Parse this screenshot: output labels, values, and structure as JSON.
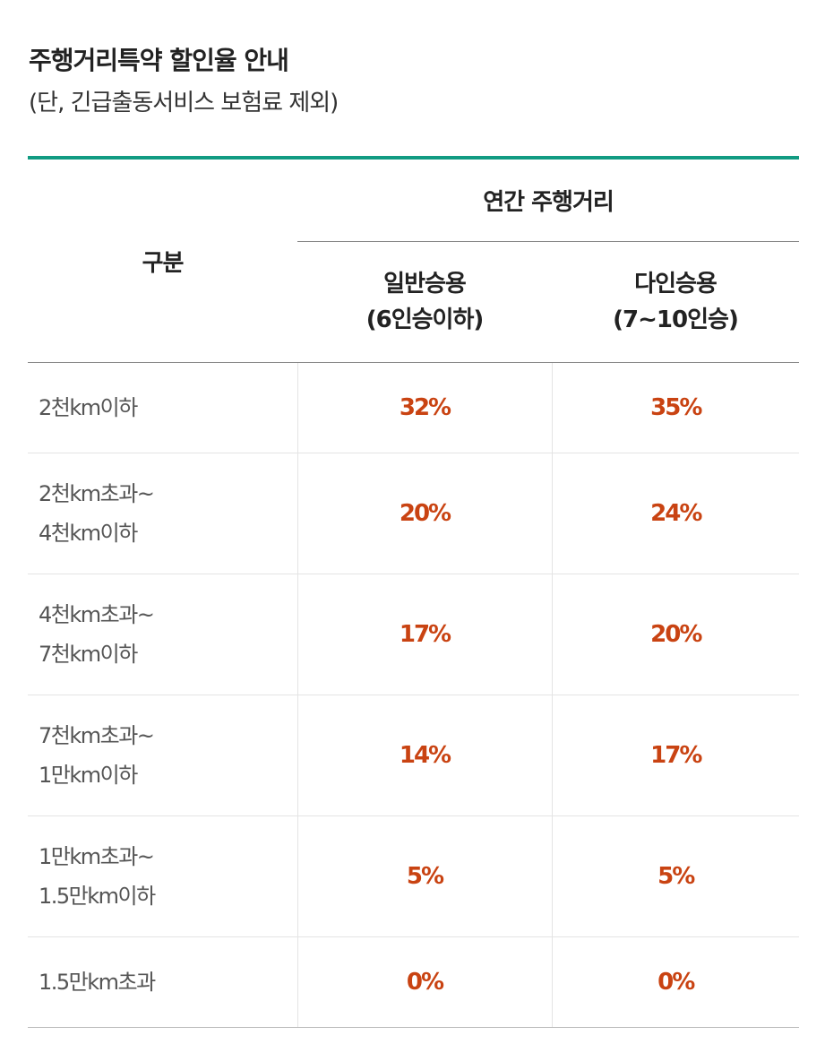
{
  "title": "주행거리특약 할인율 안내",
  "subtitle": "(단, 긴급출동서비스 보험료 제외)",
  "accent_color": "#119b82",
  "rate_color": "#c94312",
  "table": {
    "corner_label": "구분",
    "group_label": "연간 주행거리",
    "columns": [
      {
        "line1": "일반승용",
        "line2": "(6인승이하)"
      },
      {
        "line1": "다인승용",
        "line2": "(7~10인승)"
      }
    ],
    "rows": [
      {
        "label": [
          "2천km이하"
        ],
        "rates": [
          "32%",
          "35%"
        ]
      },
      {
        "label": [
          "2천km초과~",
          "4천km이하"
        ],
        "rates": [
          "20%",
          "24%"
        ]
      },
      {
        "label": [
          "4천km초과~",
          "7천km이하"
        ],
        "rates": [
          "17%",
          "20%"
        ]
      },
      {
        "label": [
          "7천km초과~",
          "1만km이하"
        ],
        "rates": [
          "14%",
          "17%"
        ]
      },
      {
        "label": [
          "1만km초과~",
          "1.5만km이하"
        ],
        "rates": [
          "5%",
          "5%"
        ]
      },
      {
        "label": [
          "1.5만km초과"
        ],
        "rates": [
          "0%",
          "0%"
        ]
      }
    ]
  }
}
